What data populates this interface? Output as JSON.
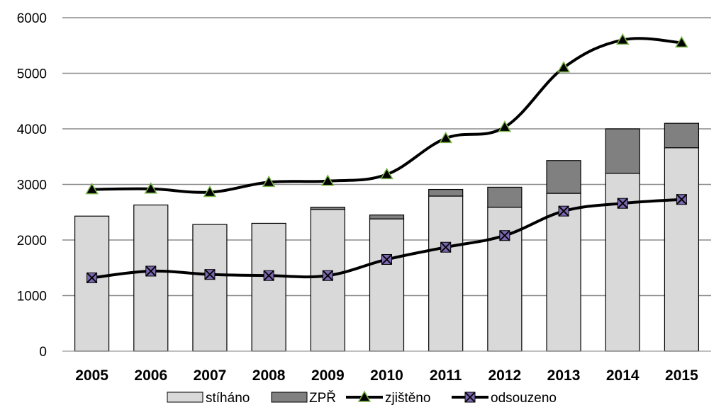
{
  "chart_data": {
    "type": "bar",
    "title": "",
    "xlabel": "",
    "ylabel": "",
    "ylim": [
      0,
      6000
    ],
    "yticks": [
      0,
      1000,
      2000,
      3000,
      4000,
      5000,
      6000
    ],
    "grid": true,
    "legend_position": "bottom",
    "categories": [
      "2005",
      "2006",
      "2007",
      "2008",
      "2009",
      "2010",
      "2011",
      "2012",
      "2013",
      "2014",
      "2015"
    ],
    "bar_series": [
      {
        "name": "stíháno",
        "color": "#d9d9d9",
        "values": [
          2430,
          2630,
          2280,
          2300,
          2550,
          2380,
          2790,
          2590,
          2840,
          3200,
          3660
        ]
      },
      {
        "name": "ZPŘ",
        "color": "#808080",
        "values": [
          0,
          0,
          0,
          0,
          40,
          70,
          120,
          360,
          590,
          800,
          440
        ]
      }
    ],
    "line_series": [
      {
        "name": "zjištěno",
        "marker": "triangle",
        "marker_color": "#2f8a2f",
        "values": [
          2910,
          2920,
          2860,
          3040,
          3060,
          3180,
          3830,
          4030,
          5100,
          5600,
          5550
        ]
      },
      {
        "name": "odsouzeno",
        "marker": "x-square",
        "marker_color": "#7b68b0",
        "values": [
          1320,
          1440,
          1380,
          1360,
          1360,
          1650,
          1870,
          2080,
          2520,
          2660,
          2730
        ]
      }
    ]
  }
}
